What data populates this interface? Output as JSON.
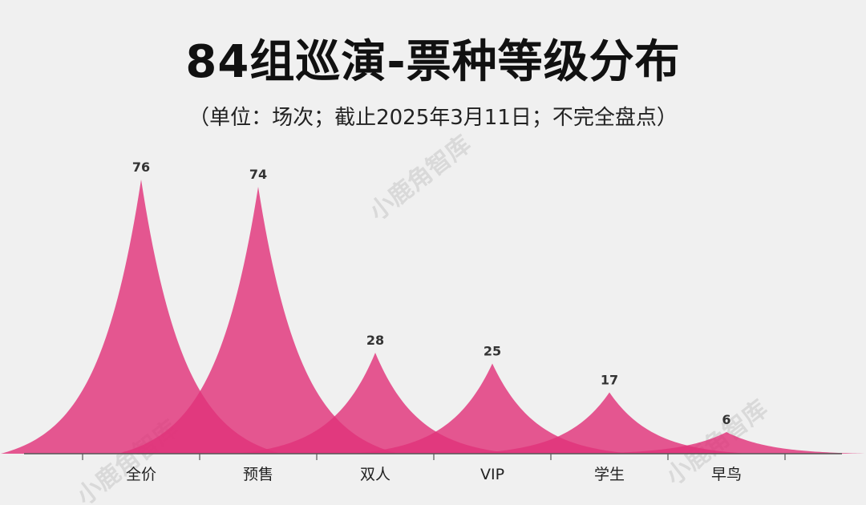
{
  "header": {
    "title": "84组巡演-票种等级分布",
    "subtitle": "（单位：场次；截止2025年3月11日；不完全盘点）"
  },
  "watermark": "小鹿角智库",
  "colors": {
    "peak": "#e0337a",
    "axis": "#555555"
  },
  "chart_data": {
    "type": "area",
    "categories": [
      "全价",
      "预售",
      "双人",
      "VIP",
      "学生",
      "早鸟"
    ],
    "values": [
      76,
      74,
      28,
      25,
      17,
      6
    ],
    "ylim": [
      0,
      80
    ],
    "grid": false,
    "legend": "none"
  }
}
